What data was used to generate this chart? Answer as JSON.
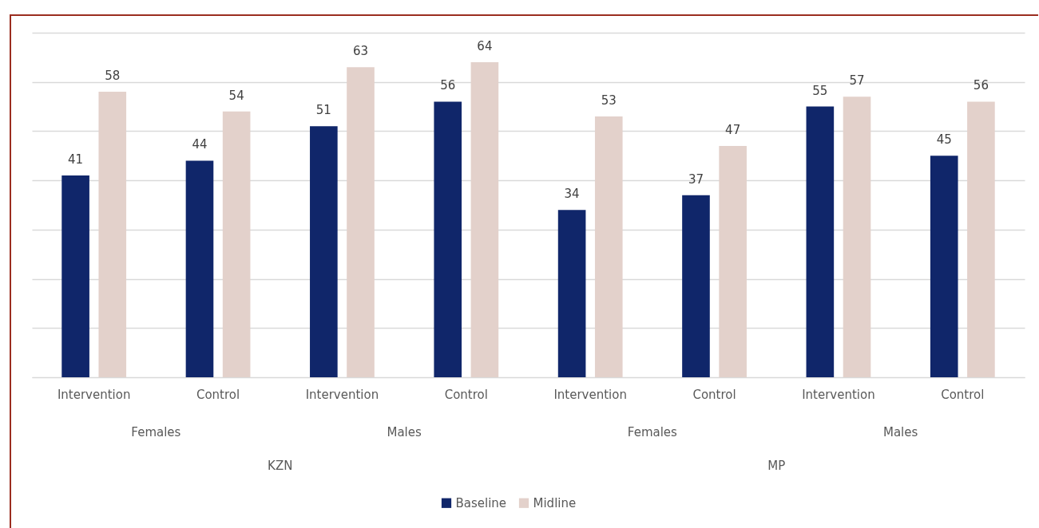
{
  "chart_data": {
    "type": "bar",
    "categories": [
      "Intervention",
      "Control",
      "Intervention",
      "Control",
      "Intervention",
      "Control",
      "Intervention",
      "Control"
    ],
    "series": [
      {
        "name": "Baseline",
        "color": "#10266a",
        "values": [
          41,
          44,
          51,
          56,
          34,
          37,
          55,
          45
        ]
      },
      {
        "name": "Midline",
        "color": "#e3d1cb",
        "values": [
          58,
          54,
          63,
          64,
          53,
          47,
          57,
          56
        ]
      }
    ],
    "ylim": [
      0,
      70
    ],
    "yticks": [
      {
        "value": 0,
        "label": null
      },
      {
        "value": 10,
        "label": null
      },
      {
        "value": 20,
        "label": null
      },
      {
        "value": 30,
        "label": null
      },
      {
        "value": 40,
        "label": null
      },
      {
        "value": 50,
        "label": null
      },
      {
        "value": 60,
        "label": null
      },
      {
        "value": 70,
        "label": null
      }
    ],
    "annotations": [
      "Females",
      "Males",
      "Females",
      "Males",
      "KZN",
      "MP"
    ],
    "tick_labels": "x",
    "data_labels": true,
    "grid": "y",
    "legend": "bottom"
  }
}
